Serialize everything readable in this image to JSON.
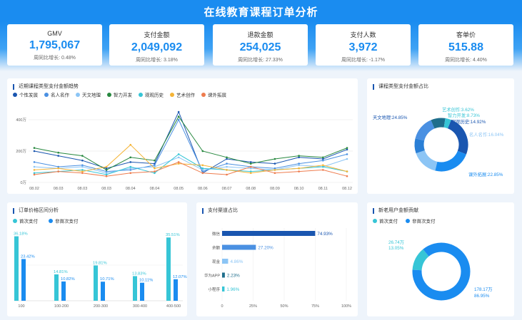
{
  "header": {
    "title": "在线教育课程订单分析"
  },
  "kpis": [
    {
      "label": "GMV",
      "value": "1,795,067",
      "sub": "周同比增长: 0.48%"
    },
    {
      "label": "支付金额",
      "value": "2,049,092",
      "sub": "周同比增长: 3.18%"
    },
    {
      "label": "退款金额",
      "value": "254,025",
      "sub": "周同比增长: 27.33%"
    },
    {
      "label": "支付人数",
      "value": "3,972",
      "sub": "周同比增长: -1.17%"
    },
    {
      "label": "客单价",
      "value": "515.88",
      "sub": "周同比增长: 4.40%"
    }
  ],
  "colors": {
    "header": "#1a8cf0",
    "primary": "#1a8cf0",
    "teal": "#36c5d6",
    "navy": "#1a56b0"
  },
  "panels": {
    "trend": "近期课程类型支付金额趋势",
    "category_share": "课程类型支付金额占比",
    "price_range": "订单价格区间分析",
    "pay_channel": "支付渠道占比",
    "new_old": "新老用户金额贡献"
  },
  "chart_data": [
    {
      "type": "line",
      "x": [
        "08.02",
        "08.03",
        "08.03",
        "08.03",
        "08.04",
        "08.04",
        "08.05",
        "08.06",
        "08.07",
        "08.08",
        "08.09",
        "08.10",
        "08.11",
        "08.12"
      ],
      "yticks": [
        "0万",
        "200万",
        "400万"
      ],
      "ylim": [
        0,
        500
      ],
      "legend_position": "top-left",
      "series": [
        {
          "name": "个性发展",
          "color": "#1a56b0",
          "values": [
            200,
            170,
            140,
            90,
            130,
            120,
            450,
            60,
            150,
            130,
            120,
            160,
            150,
            210
          ]
        },
        {
          "name": "名人名作",
          "color": "#4a90e2",
          "values": [
            130,
            100,
            110,
            70,
            80,
            110,
            400,
            70,
            120,
            100,
            90,
            120,
            140,
            180
          ]
        },
        {
          "name": "天文地理",
          "color": "#8cc5f5",
          "values": [
            100,
            90,
            100,
            60,
            90,
            100,
            160,
            80,
            100,
            90,
            80,
            110,
            100,
            150
          ]
        },
        {
          "name": "智力开发",
          "color": "#27883f",
          "values": [
            220,
            190,
            170,
            80,
            160,
            140,
            420,
            200,
            160,
            120,
            150,
            170,
            160,
            220
          ]
        },
        {
          "name": "观观历史",
          "color": "#36c5d6",
          "values": [
            60,
            70,
            80,
            50,
            100,
            60,
            180,
            90,
            80,
            70,
            80,
            90,
            100,
            70
          ]
        },
        {
          "name": "艺术创作",
          "color": "#f5b436",
          "values": [
            80,
            90,
            70,
            100,
            240,
            90,
            120,
            110,
            80,
            60,
            80,
            90,
            110,
            70
          ]
        },
        {
          "name": "课外拓展",
          "color": "#ee7c4e",
          "values": [
            50,
            70,
            60,
            40,
            60,
            70,
            130,
            60,
            50,
            100,
            60,
            70,
            80,
            40
          ]
        }
      ]
    },
    {
      "type": "pie",
      "slices": [
        {
          "label": "天文地理:24.85%",
          "value": 24.85,
          "color": "#1a56b0"
        },
        {
          "label": "课外拓展:22.85%",
          "value": 22.85,
          "color": "#1a8cf0"
        },
        {
          "label": "名人名作:16.04%",
          "value": 16.04,
          "color": "#8cc5f5"
        },
        {
          "label": "观观历史:14.92%",
          "value": 14.92,
          "color": "#4a90e2"
        },
        {
          "label": "智力开发:8.73%",
          "value": 8.73,
          "color": "#1f6e8c"
        },
        {
          "label": "艺术创作:3.62%",
          "value": 3.62,
          "color": "#36c5d6"
        },
        {
          "label": "",
          "value": 8.99,
          "color": "#2a7fd6"
        }
      ]
    },
    {
      "type": "bar",
      "categories": [
        "100",
        "100-200",
        "200-300",
        "300-400",
        "400-500"
      ],
      "legend_position": "top-left",
      "ylim": [
        0,
        40
      ],
      "series": [
        {
          "name": "首次支付",
          "color": "#36c5d6",
          "values": [
            36.18,
            14.81,
            19.81,
            13.83,
            35.51
          ],
          "labels": [
            "36.18%",
            "14.81%",
            "19.81%",
            "13.83%",
            "35.51%"
          ]
        },
        {
          "name": "非首次支付",
          "color": "#1a8cf0",
          "values": [
            23.42,
            10.82,
            10.71,
            10.11,
            12.07
          ],
          "labels": [
            "23.42%",
            "10.82%",
            "10.71%",
            "10.11%",
            "12.07%"
          ]
        }
      ]
    },
    {
      "type": "bar",
      "orientation": "horizontal",
      "categories": [
        "微信",
        "余额",
        "现金",
        "华为APP",
        "小程序"
      ],
      "values": [
        74.93,
        27.2,
        4.86,
        2.23,
        1.96
      ],
      "labels": [
        "74.93%",
        "27.20%",
        "4.86%",
        "2.23%",
        "1.96%"
      ],
      "colors": [
        "#1a56b0",
        "#4a90e2",
        "#8cc5f5",
        "#1f6e8c",
        "#36c5d6"
      ],
      "xticks": [
        "0",
        "25%",
        "50%",
        "75%",
        "100%"
      ],
      "xlim": [
        0,
        100
      ]
    },
    {
      "type": "pie",
      "legend_position": "top-left",
      "slices": [
        {
          "label": "首次支付",
          "amount": "26.74万",
          "percent": "13.05%",
          "value": 13.05,
          "color": "#36c5d6"
        },
        {
          "label": "非首次支付",
          "amount": "178.17万",
          "percent": "86.95%",
          "value": 86.95,
          "color": "#1a8cf0"
        }
      ]
    }
  ]
}
